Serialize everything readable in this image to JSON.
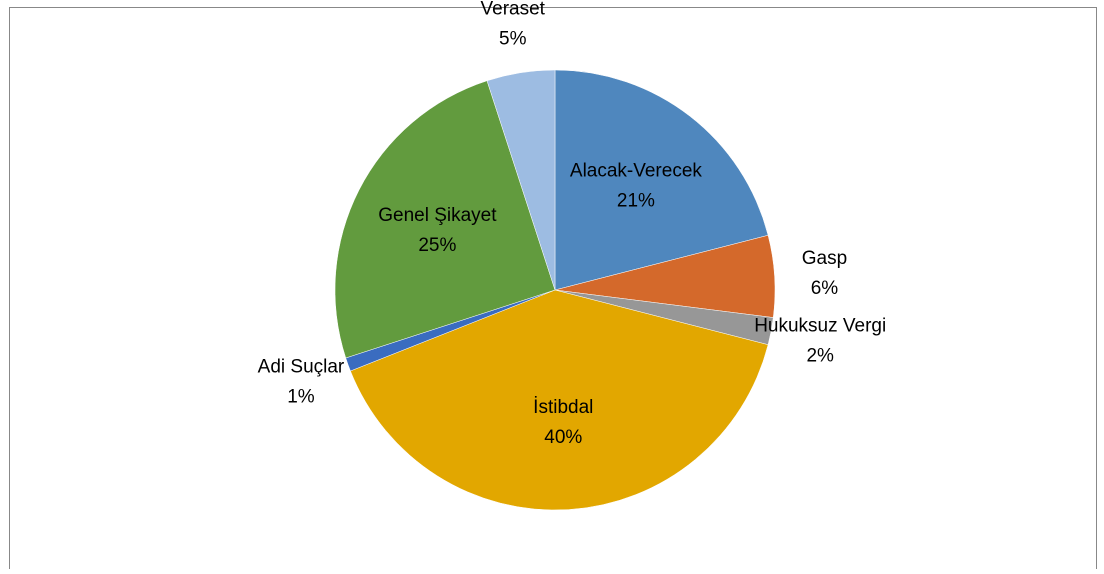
{
  "chart_data": {
    "type": "pie",
    "categories": [
      "Alacak-Verecek",
      "Gasp",
      "Hukuksuz Vergi",
      "İstibdal",
      "Adi Suçlar",
      "Genel Şikayet",
      "Veraset"
    ],
    "values": [
      21,
      6,
      2,
      40,
      1,
      25,
      5
    ],
    "value_labels": [
      "21%",
      "6%",
      "2%",
      "40%",
      "1%",
      "25%",
      "5%"
    ],
    "colors": [
      "#4f87be",
      "#d4692b",
      "#979797",
      "#e2a700",
      "#3a6cc0",
      "#629b3e",
      "#9dbce2"
    ]
  }
}
